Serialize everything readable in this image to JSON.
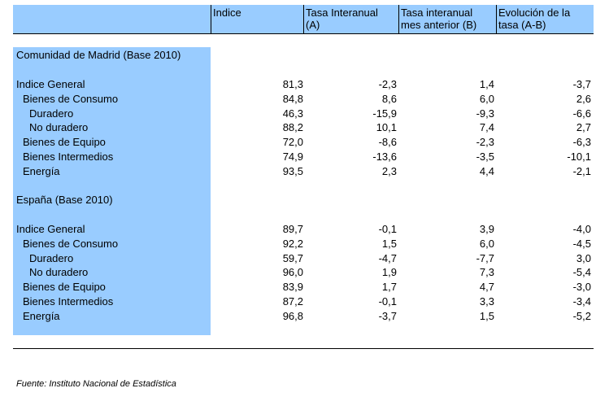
{
  "headers": {
    "indice": "Indice",
    "tasa_a": [
      "Tasa Interanual",
      "(A)"
    ],
    "tasa_b": [
      "Tasa interanual",
      "mes anterior (B)"
    ],
    "evol": [
      "Evolución de la",
      "tasa (A-B)"
    ]
  },
  "madrid": {
    "title": "Comunidad de Madrid (Base 2010)",
    "rows": [
      {
        "label": "Indice General",
        "indent": 0,
        "v": [
          "81,3",
          "-2,3",
          "1,4",
          "-3,7"
        ]
      },
      {
        "label": "Bienes de Consumo",
        "indent": 1,
        "v": [
          "84,8",
          "8,6",
          "6,0",
          "2,6"
        ]
      },
      {
        "label": "Duradero",
        "indent": 2,
        "v": [
          "46,3",
          "-15,9",
          "-9,3",
          "-6,6"
        ]
      },
      {
        "label": "No duradero",
        "indent": 2,
        "v": [
          "88,2",
          "10,1",
          "7,4",
          "2,7"
        ]
      },
      {
        "label": "Bienes de Equipo",
        "indent": 1,
        "v": [
          "72,0",
          "-8,6",
          "-2,3",
          "-6,3"
        ]
      },
      {
        "label": "Bienes Intermedios",
        "indent": 1,
        "v": [
          "74,9",
          "-13,6",
          "-3,5",
          "-10,1"
        ]
      },
      {
        "label": "Energía",
        "indent": 1,
        "v": [
          "93,5",
          "2,3",
          "4,4",
          "-2,1"
        ]
      }
    ]
  },
  "espana": {
    "title": "España (Base 2010)",
    "rows": [
      {
        "label": "Indice General",
        "indent": 0,
        "v": [
          "89,7",
          "-0,1",
          "3,9",
          "-4,0"
        ]
      },
      {
        "label": "Bienes de Consumo",
        "indent": 1,
        "v": [
          "92,2",
          "1,5",
          "6,0",
          "-4,5"
        ]
      },
      {
        "label": "Duradero",
        "indent": 2,
        "v": [
          "59,7",
          "-4,7",
          "-7,7",
          "3,0"
        ]
      },
      {
        "label": "No duradero",
        "indent": 2,
        "v": [
          "96,0",
          "1,9",
          "7,3",
          "-5,4"
        ]
      },
      {
        "label": "Bienes de Equipo",
        "indent": 1,
        "v": [
          "83,9",
          "1,7",
          "4,7",
          "-3,0"
        ]
      },
      {
        "label": "Bienes Intermedios",
        "indent": 1,
        "v": [
          "87,2",
          "-0,1",
          "3,3",
          "-3,4"
        ]
      },
      {
        "label": "Energía",
        "indent": 1,
        "v": [
          "96,8",
          "-3,7",
          "1,5",
          "-5,2"
        ]
      }
    ]
  },
  "source": "Fuente: Instituto Nacional de Estadística"
}
